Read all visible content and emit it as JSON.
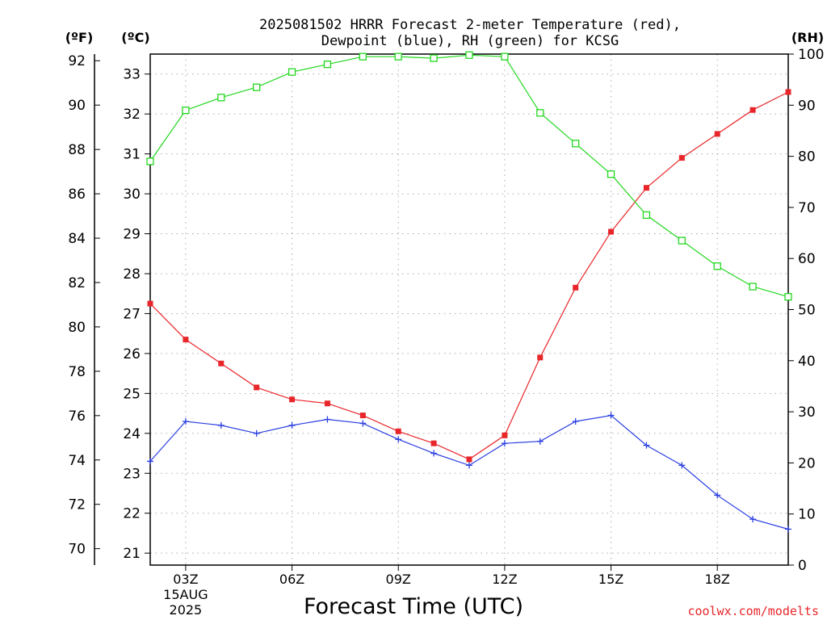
{
  "chart_data": {
    "type": "line",
    "title_line1": "2025081502 HRRR Forecast 2-meter Temperature (red),",
    "title_line2": "Dewpoint (blue), RH (green) for KCSG",
    "xlabel": "Forecast Time (UTC)",
    "credit": "coolwx.com/modelts",
    "unit_labels": {
      "fahrenheit": "(ºF)",
      "celsius": "(ºC)",
      "rh": "(RH)"
    },
    "x_hours": [
      2,
      3,
      4,
      5,
      6,
      7,
      8,
      9,
      10,
      11,
      12,
      13,
      14,
      15,
      16,
      17,
      18,
      19,
      20
    ],
    "x_ticks": [
      {
        "hour": 3,
        "label": "03Z",
        "sub1": "15AUG",
        "sub2": "2025"
      },
      {
        "hour": 6,
        "label": "06Z"
      },
      {
        "hour": 9,
        "label": "09Z"
      },
      {
        "hour": 12,
        "label": "12Z"
      },
      {
        "hour": 15,
        "label": "15Z"
      },
      {
        "hour": 18,
        "label": "18Z"
      }
    ],
    "xlim": [
      2,
      20
    ],
    "y_celsius": {
      "range": [
        20.7,
        33.5
      ],
      "ticks": [
        "21",
        "22",
        "23",
        "24",
        "25",
        "26",
        "27",
        "28",
        "29",
        "30",
        "31",
        "32",
        "33"
      ]
    },
    "y_fahrenheit": {
      "ticks": [
        "70",
        "72",
        "74",
        "76",
        "78",
        "80",
        "82",
        "84",
        "86",
        "88",
        "90",
        "92"
      ]
    },
    "y_rh": {
      "range": [
        0,
        100
      ],
      "ticks": [
        "0",
        "10",
        "20",
        "30",
        "40",
        "50",
        "60",
        "70",
        "80",
        "90",
        "100"
      ]
    },
    "grid": true,
    "series": [
      {
        "name": "Temperature",
        "axis": "celsius",
        "marker": "filled-square",
        "color": "#e8262a",
        "values": [
          27.25,
          26.35,
          25.75,
          25.15,
          24.85,
          24.75,
          24.45,
          24.05,
          23.75,
          23.35,
          23.95,
          25.9,
          27.65,
          29.05,
          30.15,
          30.9,
          31.5,
          32.1,
          32.55
        ]
      },
      {
        "name": "Dewpoint",
        "axis": "celsius",
        "marker": "plus",
        "color": "#2a3fe0",
        "values": [
          23.3,
          24.3,
          24.2,
          24.0,
          24.2,
          24.35,
          24.25,
          23.85,
          23.5,
          23.2,
          23.75,
          23.8,
          24.3,
          24.45,
          23.7,
          23.2,
          22.45,
          21.85,
          21.6
        ]
      },
      {
        "name": "RH",
        "axis": "rh",
        "marker": "open-square",
        "color": "#22d81f",
        "values": [
          79,
          89,
          91.5,
          93.5,
          96.5,
          98,
          99.5,
          99.5,
          99.2,
          99.8,
          99.5,
          88.5,
          82.5,
          76.5,
          68.5,
          63.5,
          58.5,
          54.5,
          52.5
        ]
      }
    ]
  }
}
